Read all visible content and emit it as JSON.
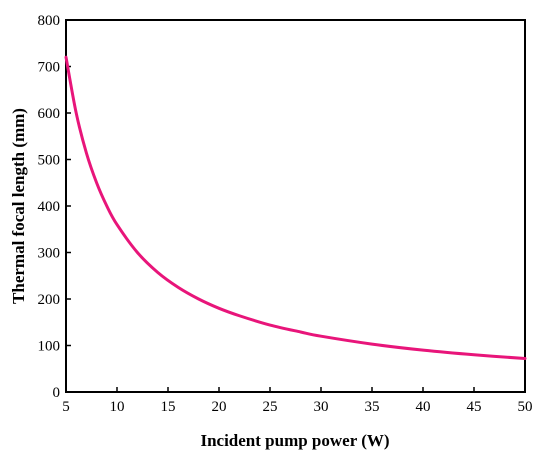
{
  "chart_data": {
    "type": "line",
    "xlabel": "Incident pump power (W)",
    "ylabel": "Thermal focal length (mm)",
    "xlim": [
      5,
      50
    ],
    "ylim": [
      0,
      800
    ],
    "xticks": [
      "5",
      "10",
      "15",
      "20",
      "25",
      "30",
      "35",
      "40",
      "45",
      "50"
    ],
    "yticks": [
      "0",
      "100",
      "200",
      "300",
      "400",
      "500",
      "600",
      "700",
      "800"
    ],
    "grid": false,
    "series": [
      {
        "color": "#e8157a",
        "x": [
          5,
          6,
          7,
          8,
          9,
          10,
          12,
          14,
          16,
          18,
          20,
          22,
          25,
          28,
          30,
          35,
          40,
          45,
          50
        ],
        "y": [
          720,
          600,
          514,
          450,
          400,
          360,
          300,
          257,
          225,
          200,
          180,
          164,
          144,
          129,
          120,
          103,
          90,
          80,
          72
        ]
      }
    ]
  }
}
